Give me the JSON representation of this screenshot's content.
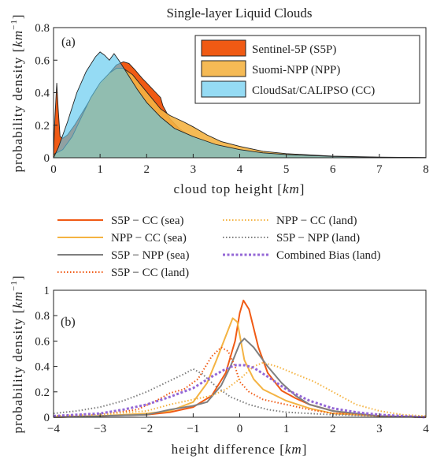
{
  "chart_data": [
    {
      "type": "area",
      "title": "Single-layer Liquid Clouds",
      "panel_label": "(a)",
      "xlabel": "cloud top height",
      "xlabel_unit": "km",
      "ylabel": "probability density",
      "ylabel_unit": "km",
      "ylabel_unit_exp": "−1",
      "xlim": [
        0,
        8
      ],
      "ylim": [
        0,
        0.8
      ],
      "xticks": [
        "0",
        "1",
        "2",
        "3",
        "4",
        "5",
        "6",
        "7",
        "8"
      ],
      "yticks": [
        "0",
        "0.2",
        "0.4",
        "0.6",
        "0.8"
      ],
      "legend_position": "top-right",
      "series": [
        {
          "name": "Sentinel-5P (S5P)",
          "color": "#f05a14",
          "points": [
            [
              0,
              0.03
            ],
            [
              0.03,
              0.25
            ],
            [
              0.07,
              0.46
            ],
            [
              0.1,
              0.3
            ],
            [
              0.14,
              0.13
            ],
            [
              0.2,
              0.12
            ],
            [
              0.3,
              0.14
            ],
            [
              0.45,
              0.2
            ],
            [
              0.6,
              0.27
            ],
            [
              0.75,
              0.34
            ],
            [
              0.9,
              0.41
            ],
            [
              1.05,
              0.46
            ],
            [
              1.2,
              0.52
            ],
            [
              1.35,
              0.57
            ],
            [
              1.5,
              0.59
            ],
            [
              1.62,
              0.58
            ],
            [
              1.75,
              0.54
            ],
            [
              1.9,
              0.49
            ],
            [
              2.0,
              0.46
            ],
            [
              2.1,
              0.43
            ],
            [
              2.2,
              0.4
            ],
            [
              2.3,
              0.37
            ],
            [
              2.35,
              0.32
            ],
            [
              2.5,
              0.24
            ],
            [
              2.7,
              0.18
            ],
            [
              3.0,
              0.12
            ],
            [
              3.5,
              0.07
            ],
            [
              4.0,
              0.04
            ],
            [
              5.0,
              0.015
            ],
            [
              6.0,
              0.006
            ],
            [
              7.0,
              0.003
            ],
            [
              8.0,
              0.001
            ]
          ]
        },
        {
          "name": "Suomi-NPP (NPP)",
          "color": "#f4b342",
          "points": [
            [
              0,
              0.02
            ],
            [
              0.2,
              0.05
            ],
            [
              0.4,
              0.13
            ],
            [
              0.6,
              0.25
            ],
            [
              0.8,
              0.37
            ],
            [
              1.0,
              0.46
            ],
            [
              1.2,
              0.52
            ],
            [
              1.35,
              0.55
            ],
            [
              1.5,
              0.55
            ],
            [
              1.7,
              0.51
            ],
            [
              1.9,
              0.44
            ],
            [
              2.1,
              0.37
            ],
            [
              2.3,
              0.3
            ],
            [
              2.5,
              0.26
            ],
            [
              2.8,
              0.22
            ],
            [
              3.0,
              0.19
            ],
            [
              3.3,
              0.14
            ],
            [
              3.6,
              0.1
            ],
            [
              4.0,
              0.07
            ],
            [
              4.5,
              0.04
            ],
            [
              5.0,
              0.025
            ],
            [
              6.0,
              0.01
            ],
            [
              7.0,
              0.004
            ],
            [
              8.0,
              0.001
            ]
          ]
        },
        {
          "name": "CloudSat/CALIPSO (CC)",
          "color": "#5cc7ee",
          "points": [
            [
              0,
              0.0
            ],
            [
              0.1,
              0.06
            ],
            [
              0.3,
              0.22
            ],
            [
              0.5,
              0.4
            ],
            [
              0.7,
              0.53
            ],
            [
              0.9,
              0.62
            ],
            [
              1.0,
              0.65
            ],
            [
              1.1,
              0.63
            ],
            [
              1.2,
              0.6
            ],
            [
              1.3,
              0.64
            ],
            [
              1.4,
              0.6
            ],
            [
              1.6,
              0.51
            ],
            [
              1.8,
              0.42
            ],
            [
              2.0,
              0.34
            ],
            [
              2.3,
              0.25
            ],
            [
              2.6,
              0.18
            ],
            [
              3.0,
              0.13
            ],
            [
              3.5,
              0.08
            ],
            [
              4.0,
              0.05
            ],
            [
              4.5,
              0.03
            ],
            [
              5.0,
              0.02
            ],
            [
              6.0,
              0.008
            ],
            [
              7.0,
              0.003
            ],
            [
              8.0,
              0.001
            ]
          ]
        }
      ]
    },
    {
      "type": "line",
      "panel_label": "(b)",
      "xlabel": "height difference",
      "xlabel_unit": "km",
      "ylabel": "probability density",
      "ylabel_unit": "km",
      "ylabel_unit_exp": "−1",
      "xlim": [
        -4,
        4
      ],
      "ylim": [
        0,
        1
      ],
      "xticks": [
        "−4",
        "−3",
        "−2",
        "−1",
        "0",
        "1",
        "2",
        "3",
        "4"
      ],
      "yticks": [
        "0",
        "0.2",
        "0.4",
        "0.6",
        "0.8",
        "1"
      ],
      "legend_position": "above",
      "series": [
        {
          "name": "S5P − CC (sea)",
          "color": "#f05a14",
          "style": "solid",
          "points": [
            [
              -4,
              0
            ],
            [
              -3,
              0.01
            ],
            [
              -2,
              0.02
            ],
            [
              -1.5,
              0.04
            ],
            [
              -1,
              0.08
            ],
            [
              -0.6,
              0.17
            ],
            [
              -0.3,
              0.35
            ],
            [
              -0.1,
              0.6
            ],
            [
              0.0,
              0.82
            ],
            [
              0.08,
              0.92
            ],
            [
              0.2,
              0.85
            ],
            [
              0.4,
              0.55
            ],
            [
              0.6,
              0.35
            ],
            [
              0.9,
              0.21
            ],
            [
              1.2,
              0.15
            ],
            [
              1.5,
              0.1
            ],
            [
              2.0,
              0.05
            ],
            [
              2.5,
              0.02
            ],
            [
              3,
              0.01
            ],
            [
              4,
              0
            ]
          ]
        },
        {
          "name": "NPP − CC (sea)",
          "color": "#f4b342",
          "style": "solid",
          "points": [
            [
              -4,
              0
            ],
            [
              -3,
              0.01
            ],
            [
              -2,
              0.03
            ],
            [
              -1.5,
              0.05
            ],
            [
              -1,
              0.12
            ],
            [
              -0.7,
              0.27
            ],
            [
              -0.5,
              0.45
            ],
            [
              -0.3,
              0.64
            ],
            [
              -0.15,
              0.78
            ],
            [
              -0.05,
              0.75
            ],
            [
              0.1,
              0.45
            ],
            [
              0.3,
              0.3
            ],
            [
              0.5,
              0.22
            ],
            [
              1.0,
              0.13
            ],
            [
              1.5,
              0.07
            ],
            [
              2.0,
              0.03
            ],
            [
              3,
              0.01
            ],
            [
              4,
              0
            ]
          ]
        },
        {
          "name": "S5P − NPP (sea)",
          "color": "#7f7f7f",
          "style": "solid",
          "points": [
            [
              -4,
              0
            ],
            [
              -3,
              0.01
            ],
            [
              -2,
              0.02
            ],
            [
              -1.5,
              0.06
            ],
            [
              -1,
              0.09
            ],
            [
              -0.7,
              0.12
            ],
            [
              -0.4,
              0.25
            ],
            [
              -0.2,
              0.4
            ],
            [
              0.0,
              0.58
            ],
            [
              0.1,
              0.62
            ],
            [
              0.3,
              0.55
            ],
            [
              0.6,
              0.4
            ],
            [
              0.9,
              0.27
            ],
            [
              1.2,
              0.17
            ],
            [
              1.5,
              0.1
            ],
            [
              2.0,
              0.05
            ],
            [
              3,
              0.01
            ],
            [
              4,
              0
            ]
          ]
        },
        {
          "name": "S5P − CC (land)",
          "color": "#f05a14",
          "style": "dotted",
          "points": [
            [
              -4,
              0.01
            ],
            [
              -3,
              0.02
            ],
            [
              -2.2,
              0.06
            ],
            [
              -1.8,
              0.13
            ],
            [
              -1.5,
              0.19
            ],
            [
              -1.2,
              0.22
            ],
            [
              -0.9,
              0.3
            ],
            [
              -0.6,
              0.48
            ],
            [
              -0.4,
              0.55
            ],
            [
              -0.25,
              0.52
            ],
            [
              -0.1,
              0.4
            ],
            [
              0.0,
              0.28
            ],
            [
              0.2,
              0.2
            ],
            [
              0.5,
              0.14
            ],
            [
              1.0,
              0.1
            ],
            [
              1.5,
              0.06
            ],
            [
              2.0,
              0.03
            ],
            [
              3,
              0.01
            ],
            [
              4,
              0
            ]
          ]
        },
        {
          "name": "NPP − CC (land)",
          "color": "#f4b342",
          "style": "dotted",
          "points": [
            [
              -4,
              0.01
            ],
            [
              -3,
              0.02
            ],
            [
              -2,
              0.05
            ],
            [
              -1.5,
              0.1
            ],
            [
              -1,
              0.14
            ],
            [
              -0.6,
              0.17
            ],
            [
              -0.3,
              0.22
            ],
            [
              0.0,
              0.3
            ],
            [
              0.3,
              0.4
            ],
            [
              0.5,
              0.43
            ],
            [
              0.8,
              0.4
            ],
            [
              1.2,
              0.34
            ],
            [
              1.6,
              0.28
            ],
            [
              2.0,
              0.2
            ],
            [
              2.5,
              0.1
            ],
            [
              3.0,
              0.05
            ],
            [
              3.5,
              0.02
            ],
            [
              4,
              0.01
            ]
          ]
        },
        {
          "name": "S5P − NPP (land)",
          "color": "#7f7f7f",
          "style": "dotted",
          "points": [
            [
              -4,
              0.03
            ],
            [
              -3.5,
              0.05
            ],
            [
              -3,
              0.08
            ],
            [
              -2.5,
              0.13
            ],
            [
              -2,
              0.2
            ],
            [
              -1.6,
              0.27
            ],
            [
              -1.2,
              0.34
            ],
            [
              -1.0,
              0.38
            ],
            [
              -0.8,
              0.34
            ],
            [
              -0.5,
              0.24
            ],
            [
              -0.2,
              0.16
            ],
            [
              0.2,
              0.1
            ],
            [
              0.6,
              0.06
            ],
            [
              1.0,
              0.04
            ],
            [
              2.0,
              0.02
            ],
            [
              3,
              0.01
            ],
            [
              4,
              0
            ]
          ]
        },
        {
          "name": "Combined Bias (land)",
          "color": "#9467d6",
          "style": "dashed",
          "points": [
            [
              -4,
              0.01
            ],
            [
              -3,
              0.03
            ],
            [
              -2.5,
              0.06
            ],
            [
              -2,
              0.1
            ],
            [
              -1.5,
              0.16
            ],
            [
              -1,
              0.23
            ],
            [
              -0.6,
              0.32
            ],
            [
              -0.3,
              0.38
            ],
            [
              -0.1,
              0.41
            ],
            [
              0.1,
              0.41
            ],
            [
              0.3,
              0.39
            ],
            [
              0.6,
              0.32
            ],
            [
              1.0,
              0.22
            ],
            [
              1.5,
              0.13
            ],
            [
              2.0,
              0.07
            ],
            [
              2.5,
              0.04
            ],
            [
              3,
              0.02
            ],
            [
              4,
              0
            ]
          ]
        }
      ]
    }
  ]
}
